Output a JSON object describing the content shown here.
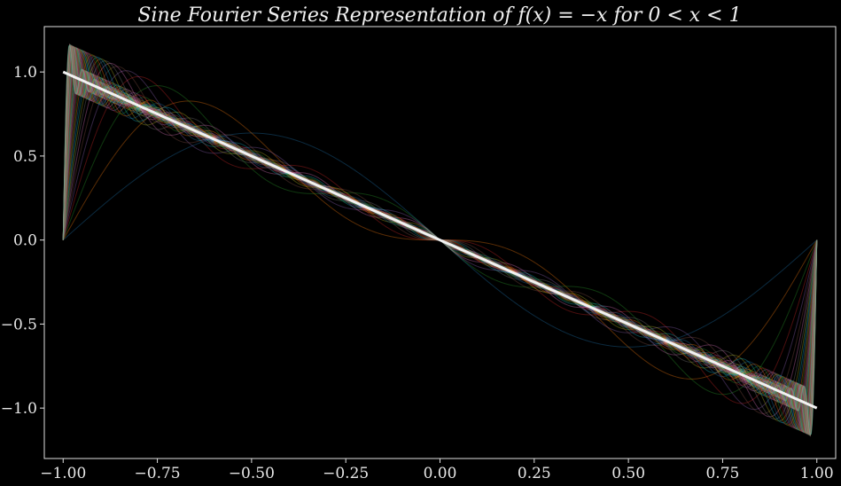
{
  "chart_data": {
    "type": "line",
    "title": "Sine Fourier Series Representation of  f(x) = −x  for  0 < x < 1",
    "xlabel": "",
    "ylabel": "",
    "xlim": [
      -1.05,
      1.05
    ],
    "ylim": [
      -1.3,
      1.27
    ],
    "x_ticks": [
      -1.0,
      -0.75,
      -0.5,
      -0.25,
      0.0,
      0.25,
      0.5,
      0.75,
      1.0
    ],
    "x_tick_labels": [
      "−1.00",
      "−0.75",
      "−0.50",
      "−0.25",
      "0.00",
      "0.25",
      "0.50",
      "0.75",
      "1.00"
    ],
    "y_ticks": [
      -1.0,
      -0.5,
      0.0,
      0.5,
      1.0
    ],
    "y_tick_labels": [
      "−1.0",
      "−0.5",
      "0.0",
      "0.5",
      "1.0"
    ],
    "grid": false,
    "background": "#000000",
    "target_function": {
      "expression": "f(x) = -x",
      "x": [
        -1.0,
        1.0
      ],
      "y": [
        1.0,
        -1.0
      ],
      "color": "#f2f2f2"
    },
    "partial_sums": {
      "expression": "S_N(x) = sum_{n=1}^{N} (2(-1)^n / (n*pi)) * sin(n*pi*x)",
      "N_range": [
        1,
        60
      ],
      "x_range": [
        -1.0,
        1.0
      ],
      "colors": [
        "#1f77b4",
        "#ff7f0e",
        "#2ca02c",
        "#d62728",
        "#9467bd",
        "#8c564b",
        "#e377c2",
        "#7f7f7f",
        "#bcbd22",
        "#17becf"
      ],
      "opacity": 0.35
    }
  }
}
